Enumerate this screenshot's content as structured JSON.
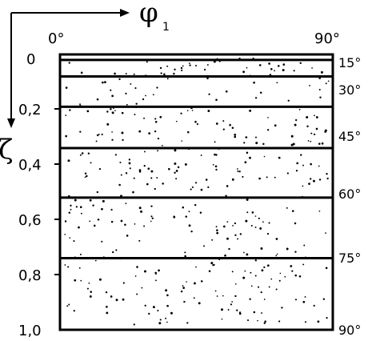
{
  "diagram": {
    "axes": {
      "horizontal_symbol": "φ",
      "horizontal_subscript": "1",
      "vertical_symbol": "ζ"
    },
    "top_labels": {
      "left": "0°",
      "right": "90°"
    },
    "left_ticks": [
      "0",
      "0,2",
      "0,4",
      "0,6",
      "0,8",
      "1,0"
    ],
    "right_labels": [
      "15°",
      "30°",
      "45°",
      "60°",
      "75°",
      "90°"
    ],
    "boundaries_zeta": [
      0.02,
      0.08,
      0.19,
      0.34,
      0.52,
      0.74
    ],
    "colors": {
      "line": "#000000",
      "dot": "#000000",
      "background": "#ffffff"
    }
  }
}
